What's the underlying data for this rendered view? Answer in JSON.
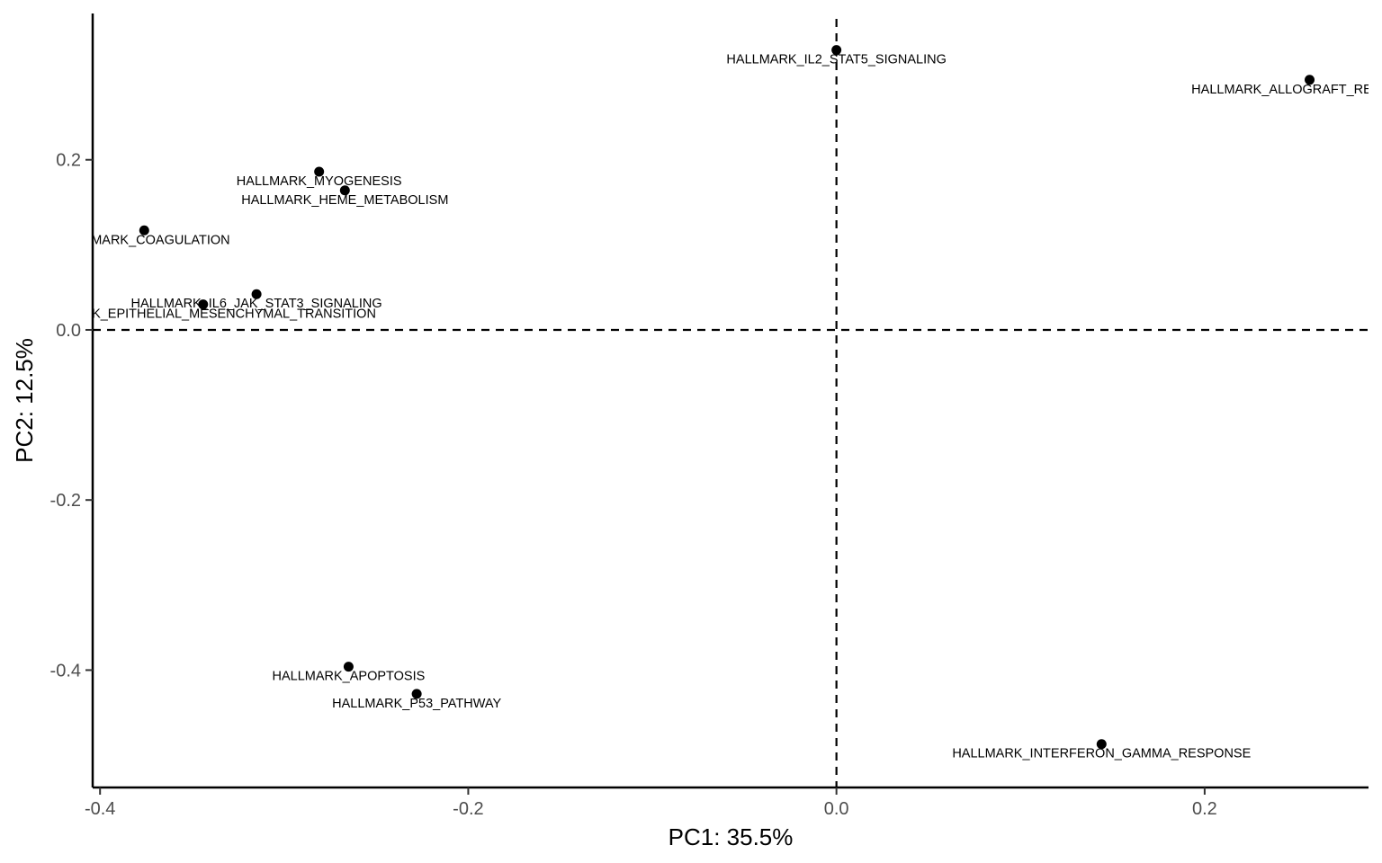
{
  "chart_data": {
    "type": "scatter",
    "xlabel": "PC1: 35.5%",
    "ylabel": "PC2: 12.5%",
    "xlim": [
      -0.404,
      0.289
    ],
    "ylim": [
      -0.538,
      0.372
    ],
    "x_ticks": [
      -0.4,
      -0.2,
      0.0,
      0.2
    ],
    "x_tick_labels": [
      "-0.4",
      "-0.2",
      "0.0",
      "0.2"
    ],
    "y_ticks": [
      -0.4,
      -0.2,
      0.0,
      0.2
    ],
    "y_tick_labels": [
      "-0.4",
      "-0.2",
      "0.0",
      "0.2"
    ],
    "reference_lines": {
      "x": 0,
      "y": 0,
      "style": "dashed"
    },
    "grid": false,
    "legend": "none",
    "point_color": "#000000",
    "points": [
      {
        "label": "HALLMARK_IL2_STAT5_SIGNALING",
        "x": 0.0,
        "y": 0.329
      },
      {
        "label": "HALLMARK_ALLOGRAFT_REJECTION",
        "x": 0.257,
        "y": 0.294
      },
      {
        "label": "HALLMARK_MYOGENESIS",
        "x": -0.281,
        "y": 0.186
      },
      {
        "label": "HALLMARK_HEME_METABOLISM",
        "x": -0.267,
        "y": 0.164
      },
      {
        "label": "HALLMARK_COAGULATION",
        "x": -0.376,
        "y": 0.117
      },
      {
        "label": "HALLMARK_IL6_JAK_STAT3_SIGNALING",
        "x": -0.315,
        "y": 0.042
      },
      {
        "label": "HALLMARK_EPITHELIAL_MESENCHYMAL_TRANSITION",
        "x": -0.344,
        "y": 0.03
      },
      {
        "label": "HALLMARK_APOPTOSIS",
        "x": -0.265,
        "y": -0.396
      },
      {
        "label": "HALLMARK_P53_PATHWAY",
        "x": -0.228,
        "y": -0.428
      },
      {
        "label": "HALLMARK_INTERFERON_GAMMA_RESPONSE",
        "x": 0.144,
        "y": -0.487
      }
    ]
  }
}
